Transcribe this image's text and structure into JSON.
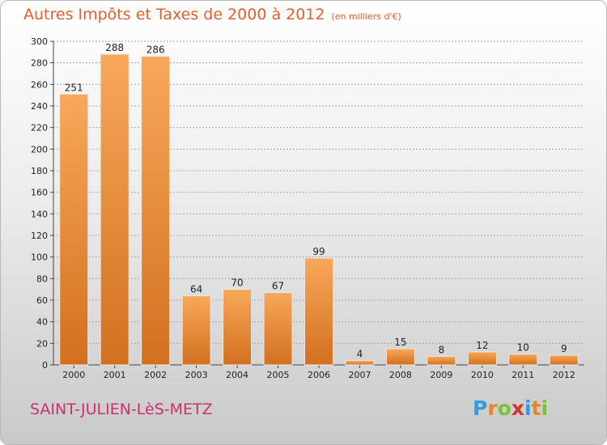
{
  "title": "Autres Impôts et Taxes de 2000 à 2012",
  "unit": "(en milliers d'€)",
  "city": "SAINT-JULIEN-LèS-METZ",
  "logo": {
    "letters": [
      "P",
      "r",
      "o",
      "x",
      "i",
      "t",
      "i"
    ],
    "colors": [
      "#3a9ad9",
      "#e8842c",
      "#7cbf3a",
      "#d9342b",
      "#3a9ad9",
      "#e8842c",
      "#7cbf3a"
    ]
  },
  "colors": {
    "bar_top": "#f8a85a",
    "bar_bottom": "#d2701f",
    "title": "#e06030",
    "city": "#c8326e"
  },
  "chart_data": {
    "type": "bar",
    "categories": [
      "2000",
      "2001",
      "2002",
      "2003",
      "2004",
      "2005",
      "2006",
      "2007",
      "2008",
      "2009",
      "2010",
      "2011",
      "2012"
    ],
    "values": [
      251,
      288,
      286,
      64,
      70,
      67,
      99,
      4,
      15,
      8,
      12,
      10,
      9
    ],
    "title": "Autres Impôts et Taxes de 2000 à 2012",
    "ylim": [
      0,
      300
    ],
    "yticks": [
      0,
      20,
      40,
      60,
      80,
      100,
      120,
      140,
      160,
      180,
      200,
      220,
      240,
      260,
      280,
      300
    ],
    "grid": true
  }
}
